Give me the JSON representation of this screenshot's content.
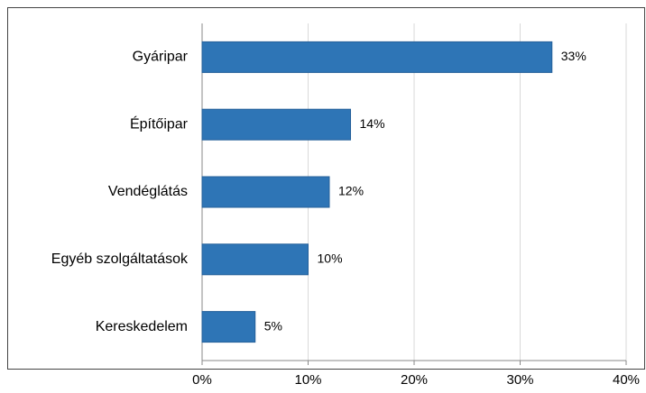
{
  "chart_data": {
    "type": "hbar",
    "categories": [
      "Gyáripar",
      "Építőipar",
      "Vendéglátás",
      "Egyéb szolgáltatások",
      "Kereskedelem"
    ],
    "values": [
      33,
      14,
      12,
      10,
      5
    ],
    "value_labels": [
      "33%",
      "14%",
      "12%",
      "10%",
      "5%"
    ],
    "color": "#2e75b6",
    "xlim": [
      0,
      40
    ],
    "xticks": [
      {
        "value": 0,
        "label": "0%"
      },
      {
        "value": 10,
        "label": "10%"
      },
      {
        "value": 20,
        "label": "20%"
      },
      {
        "value": 30,
        "label": "30%"
      },
      {
        "value": 40,
        "label": "40%"
      }
    ],
    "grid": true
  }
}
